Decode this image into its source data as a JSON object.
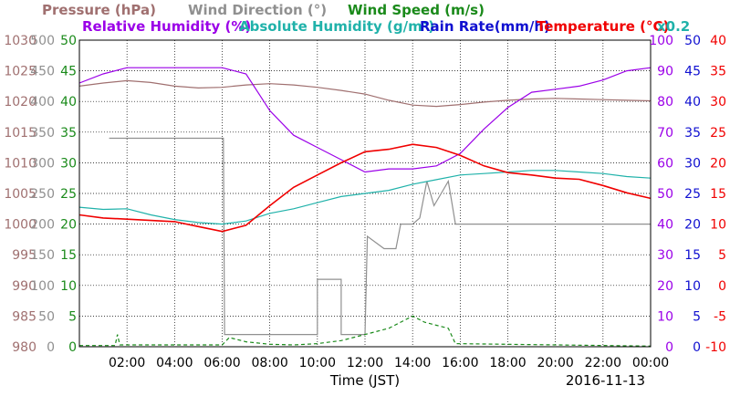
{
  "colors": {
    "pressure": "#a07070",
    "wind_direction": "#909090",
    "wind_speed": "#1a8a1a",
    "relative_humidity": "#9b00e8",
    "absolute_humidity": "#20b2aa",
    "rain_rate": "#1010d0",
    "temperature": "#f00000",
    "frame": "#000000"
  },
  "chart_data": {
    "type": "line",
    "legend": {
      "pressure": "Pressure (hPa)",
      "wind_direction": "Wind Direction (°)",
      "wind_speed": "Wind Speed (m/s)",
      "relative_humidity": "Relative Humidity (%)",
      "absolute_humidity": "Absolute Humidity (g/m³)",
      "rain_rate": "Rain Rate(mm/h)",
      "temperature": "Temperature (°C)",
      "abs_humidity_scale": "x0.2"
    },
    "xlabel": "Time (JST)",
    "date": "2016-11-13",
    "x_ticks": [
      "02:00",
      "04:00",
      "06:00",
      "08:00",
      "10:00",
      "12:00",
      "14:00",
      "16:00",
      "18:00",
      "20:00",
      "22:00",
      "00:00"
    ],
    "xlim_hours": [
      0,
      24
    ],
    "grid": true,
    "axes": {
      "pressure": {
        "ylim": [
          980,
          1030
        ],
        "ticks": [
          "1030",
          "1025",
          "1020",
          "1015",
          "1010",
          "1005",
          "1000",
          "995",
          "990",
          "985",
          "980"
        ]
      },
      "wind_direction": {
        "ylim": [
          0,
          500
        ],
        "ticks": [
          "500",
          "450",
          "400",
          "350",
          "300",
          "250",
          "200",
          "150",
          "100",
          "50",
          "0"
        ]
      },
      "wind_speed": {
        "ylim": [
          0,
          50
        ],
        "ticks": [
          "50",
          "45",
          "40",
          "35",
          "30",
          "25",
          "20",
          "15",
          "10",
          "5",
          "0"
        ]
      },
      "relative_humidity": {
        "ylim": [
          0,
          100
        ],
        "ticks": [
          "100",
          "90",
          "80",
          "70",
          "60",
          "50",
          "40",
          "30",
          "20",
          "10",
          "0"
        ]
      },
      "rain_rate": {
        "ylim": [
          0,
          50
        ],
        "ticks": [
          "50",
          "45",
          "40",
          "35",
          "30",
          "25",
          "20",
          "15",
          "10",
          "5",
          "0"
        ]
      },
      "temperature": {
        "ylim": [
          -10,
          40
        ],
        "ticks": [
          "40",
          "35",
          "30",
          "25",
          "20",
          "15",
          "10",
          "5",
          "0",
          "-5",
          "-10"
        ]
      }
    },
    "series": [
      {
        "key": "pressure",
        "axis": "pressure",
        "dash": "",
        "points": [
          [
            0,
            1022.5
          ],
          [
            1,
            1023
          ],
          [
            2,
            1023.4
          ],
          [
            3,
            1023.1
          ],
          [
            4,
            1022.5
          ],
          [
            5,
            1022.2
          ],
          [
            6,
            1022.3
          ],
          [
            7,
            1022.7
          ],
          [
            8,
            1022.9
          ],
          [
            9,
            1022.7
          ],
          [
            10,
            1022.3
          ],
          [
            11,
            1021.8
          ],
          [
            12,
            1021.2
          ],
          [
            13,
            1020.2
          ],
          [
            14,
            1019.4
          ],
          [
            15,
            1019.2
          ],
          [
            16,
            1019.5
          ],
          [
            17,
            1019.9
          ],
          [
            18,
            1020.2
          ],
          [
            19,
            1020.4
          ],
          [
            20,
            1020.5
          ],
          [
            21,
            1020.4
          ],
          [
            22,
            1020.3
          ],
          [
            23,
            1020.2
          ],
          [
            24,
            1020.1
          ]
        ]
      },
      {
        "key": "wind_direction",
        "axis": "wind_direction",
        "dash": "",
        "step": true,
        "points": [
          [
            0,
            null
          ],
          [
            1.2,
            null
          ],
          [
            1.25,
            340
          ],
          [
            6.05,
            340
          ],
          [
            6.1,
            20
          ],
          [
            10,
            20
          ],
          [
            10,
            110
          ],
          [
            11,
            110
          ],
          [
            11,
            20
          ],
          [
            12,
            20
          ],
          [
            12.1,
            180
          ],
          [
            12.8,
            160
          ],
          [
            13.3,
            160
          ],
          [
            13.5,
            200
          ],
          [
            14,
            200
          ],
          [
            14.3,
            210
          ],
          [
            14.6,
            270
          ],
          [
            14.9,
            230
          ],
          [
            15.2,
            250
          ],
          [
            15.5,
            270
          ],
          [
            15.8,
            200
          ],
          [
            17,
            200
          ],
          [
            24,
            200
          ]
        ]
      },
      {
        "key": "wind_speed",
        "axis": "wind_speed",
        "dash": "4,3",
        "points": [
          [
            0,
            0.2
          ],
          [
            1.5,
            0.2
          ],
          [
            1.6,
            2
          ],
          [
            1.7,
            0.3
          ],
          [
            6,
            0.3
          ],
          [
            6.3,
            1.5
          ],
          [
            7,
            0.8
          ],
          [
            8,
            0.4
          ],
          [
            9,
            0.3
          ],
          [
            10,
            0.5
          ],
          [
            11,
            1
          ],
          [
            12,
            2
          ],
          [
            13,
            3
          ],
          [
            13.5,
            4
          ],
          [
            14,
            5
          ],
          [
            14.5,
            4
          ],
          [
            15,
            3.5
          ],
          [
            15.5,
            3
          ],
          [
            15.8,
            0.5
          ],
          [
            24,
            0.1
          ]
        ]
      },
      {
        "key": "relative_humidity",
        "axis": "relative_humidity",
        "dash": "",
        "points": [
          [
            0,
            86
          ],
          [
            1,
            89
          ],
          [
            2,
            91
          ],
          [
            3,
            91
          ],
          [
            4,
            91
          ],
          [
            5,
            91
          ],
          [
            6,
            91
          ],
          [
            7,
            89
          ],
          [
            8,
            77
          ],
          [
            9,
            69
          ],
          [
            10,
            65
          ],
          [
            11,
            61
          ],
          [
            12,
            57
          ],
          [
            13,
            58
          ],
          [
            14,
            58
          ],
          [
            15,
            59
          ],
          [
            16,
            63
          ],
          [
            17,
            71
          ],
          [
            18,
            78
          ],
          [
            19,
            83
          ],
          [
            20,
            84
          ],
          [
            21,
            85
          ],
          [
            22,
            87
          ],
          [
            23,
            90
          ],
          [
            24,
            91
          ]
        ]
      },
      {
        "key": "absolute_humidity",
        "axis": "relative_humidity",
        "dash": "",
        "points": [
          [
            0,
            45.5
          ],
          [
            1,
            44.8
          ],
          [
            2,
            45
          ],
          [
            3,
            43
          ],
          [
            4,
            41.5
          ],
          [
            5,
            40.5
          ],
          [
            6,
            40
          ],
          [
            7,
            41
          ],
          [
            8,
            43.5
          ],
          [
            9,
            45
          ],
          [
            10,
            47
          ],
          [
            11,
            49
          ],
          [
            12,
            50
          ],
          [
            13,
            51
          ],
          [
            14,
            53
          ],
          [
            15,
            54.5
          ],
          [
            16,
            56
          ],
          [
            17,
            56.5
          ],
          [
            18,
            57
          ],
          [
            19,
            57.5
          ],
          [
            20,
            57.5
          ],
          [
            21,
            57
          ],
          [
            22,
            56.5
          ],
          [
            23,
            55.5
          ],
          [
            24,
            55
          ]
        ]
      },
      {
        "key": "temperature",
        "axis": "temperature",
        "dash": "",
        "points": [
          [
            0,
            11.5
          ],
          [
            1,
            11
          ],
          [
            2,
            10.8
          ],
          [
            3,
            10.6
          ],
          [
            4,
            10.4
          ],
          [
            5,
            9.6
          ],
          [
            6,
            8.8
          ],
          [
            7,
            9.8
          ],
          [
            8,
            13
          ],
          [
            9,
            16
          ],
          [
            10,
            18
          ],
          [
            11,
            20
          ],
          [
            12,
            21.8
          ],
          [
            13,
            22.2
          ],
          [
            14,
            23
          ],
          [
            15,
            22.5
          ],
          [
            16,
            21.2
          ],
          [
            17,
            19.5
          ],
          [
            18,
            18.4
          ],
          [
            19,
            18
          ],
          [
            20,
            17.5
          ],
          [
            21,
            17.3
          ],
          [
            22,
            16.3
          ],
          [
            23,
            15.1
          ],
          [
            24,
            14.2
          ]
        ]
      }
    ]
  }
}
